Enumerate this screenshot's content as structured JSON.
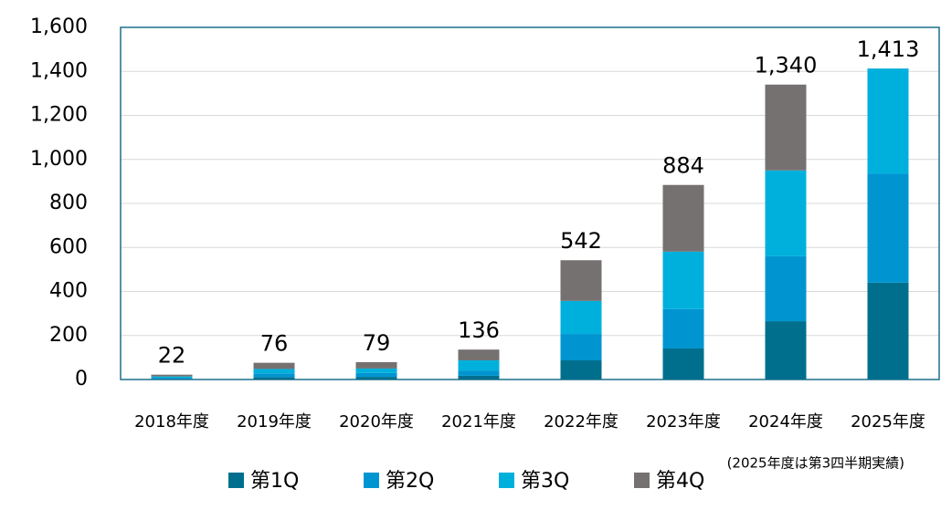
{
  "chart_data": {
    "type": "stacked_bar",
    "categories": [
      "2018年度",
      "2019年度",
      "2020年度",
      "2021年度",
      "2022年度",
      "2023年度",
      "2024年度",
      "2025年度"
    ],
    "series": [
      {
        "name": "第1Q",
        "color": "#006f8e",
        "values": [
          3,
          10,
          12,
          17,
          87,
          141,
          265,
          440
        ]
      },
      {
        "name": "第2Q",
        "color": "#0095d0",
        "values": [
          5,
          18,
          18,
          24,
          120,
          179,
          295,
          495
        ]
      },
      {
        "name": "第3Q",
        "color": "#00b0dc",
        "values": [
          6,
          20,
          20,
          46,
          150,
          261,
          390,
          478
        ]
      },
      {
        "name": "第4Q",
        "color": "#767171",
        "values": [
          8,
          28,
          29,
          49,
          185,
          303,
          390,
          null
        ]
      }
    ],
    "totals": [
      22,
      76,
      79,
      136,
      542,
      884,
      1340,
      1413
    ],
    "total_labels": [
      "22",
      "76",
      "79",
      "136",
      "542",
      "884",
      "1,340",
      "1,413"
    ],
    "annotation": "(2025年度は第3四半期実績)",
    "ylim": [
      0,
      1600
    ],
    "yticks": [
      0,
      200,
      400,
      600,
      800,
      {
        "value": 1000,
        "label": "1,000"
      },
      {
        "value": 1200,
        "label": "1,200"
      },
      {
        "value": 1400,
        "label": "1,400"
      },
      {
        "value": 1600,
        "label": "1,600"
      }
    ],
    "grid": true,
    "legend": "bottom"
  }
}
